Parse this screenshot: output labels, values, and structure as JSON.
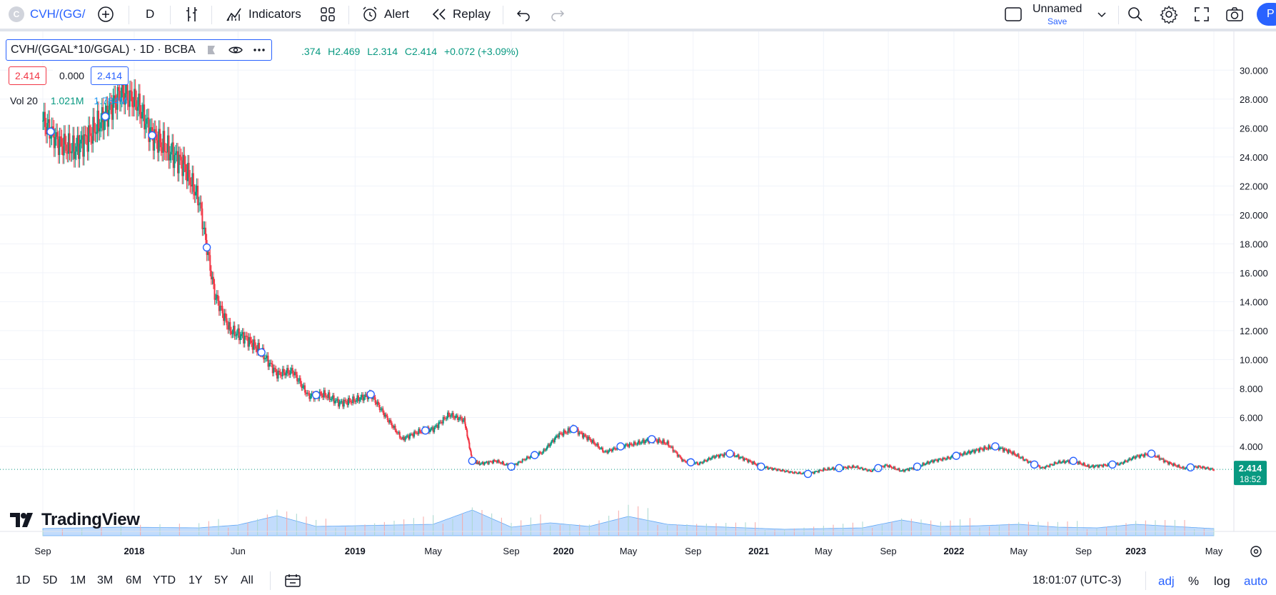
{
  "toolbar": {
    "symbol_badge": "C",
    "symbol": "CVH/(GG/",
    "interval": "D",
    "indicators_label": "Indicators",
    "alert_label": "Alert",
    "replay_label": "Replay",
    "layout_name": "Unnamed",
    "save_label": "Save",
    "publish_label": "P"
  },
  "legend": {
    "title": "CVH/(GGAL*10/GGAL) · 1D · BCBA",
    "ohlc_o": ".374",
    "ohlc_h": "H2.469",
    "ohlc_l": "L2.314",
    "ohlc_c": "C2.414",
    "ohlc_change": "+0.072 (+3.09%)",
    "bid": "2.414",
    "spread": "0.000",
    "ask": "2.414",
    "vol_label": "Vol 20",
    "vol_value": "1.021M",
    "vol_ma": "1.784M"
  },
  "watermark": {
    "brand": "TradingView"
  },
  "chart_data": {
    "type": "candlestick",
    "title": "CVH/(GGAL*10/GGAL) · 1D · BCBA",
    "ylim": [
      0,
      31
    ],
    "y_ticks": [
      "30.000",
      "28.000",
      "26.000",
      "24.000",
      "22.000",
      "20.000",
      "18.000",
      "16.000",
      "14.000",
      "12.000",
      "10.000",
      "8.000",
      "6.000",
      "4.000"
    ],
    "x_tick_labels": [
      "Sep",
      "2018",
      "Jun",
      "2019",
      "May",
      "Sep",
      "2020",
      "May",
      "Sep",
      "2021",
      "May",
      "Sep",
      "2022",
      "May",
      "Sep",
      "2023",
      "May"
    ],
    "x_tick_t": [
      0,
      0.117,
      0.25,
      0.4,
      0.5,
      0.6,
      0.667,
      0.75,
      0.833,
      0.917,
      1.0,
      1.083,
      1.167,
      1.25,
      1.333,
      1.4,
      1.5
    ],
    "series": [
      {
        "name": "Close",
        "t": [
          0,
          0.02,
          0.04,
          0.06,
          0.08,
          0.1,
          0.12,
          0.14,
          0.16,
          0.18,
          0.2,
          0.22,
          0.24,
          0.26,
          0.28,
          0.3,
          0.32,
          0.34,
          0.36,
          0.38,
          0.4,
          0.42,
          0.44,
          0.46,
          0.48,
          0.5,
          0.52,
          0.54,
          0.55,
          0.56,
          0.58,
          0.6,
          0.62,
          0.64,
          0.66,
          0.68,
          0.7,
          0.72,
          0.74,
          0.76,
          0.78,
          0.8,
          0.82,
          0.84,
          0.86,
          0.88,
          0.9,
          0.92,
          0.94,
          0.96,
          0.98,
          1.0,
          1.02,
          1.04,
          1.06,
          1.08,
          1.1,
          1.12,
          1.14,
          1.16,
          1.18,
          1.2,
          1.22,
          1.24,
          1.26,
          1.28,
          1.3,
          1.32,
          1.34,
          1.36,
          1.38,
          1.4,
          1.42,
          1.44,
          1.46,
          1.48,
          1.5
        ],
        "values": [
          26.5,
          25.0,
          24.5,
          25.5,
          26.8,
          28.5,
          27.8,
          25.5,
          24.5,
          23.5,
          21.0,
          14.5,
          12.0,
          11.5,
          10.5,
          9.0,
          9.2,
          7.5,
          7.6,
          7.0,
          7.2,
          7.6,
          6.0,
          4.5,
          5.0,
          5.2,
          6.2,
          5.8,
          3.0,
          2.8,
          3.0,
          2.6,
          3.2,
          3.6,
          4.8,
          5.2,
          4.5,
          3.6,
          4.0,
          4.2,
          4.5,
          4.2,
          3.0,
          2.8,
          3.3,
          3.5,
          3.1,
          2.6,
          2.4,
          2.2,
          2.1,
          2.4,
          2.5,
          2.6,
          2.3,
          2.7,
          2.3,
          2.6,
          3.0,
          3.2,
          3.5,
          3.8,
          4.0,
          3.6,
          3.0,
          2.5,
          2.9,
          3.0,
          2.6,
          2.7,
          2.8,
          3.3,
          3.5,
          2.9,
          2.5,
          2.6,
          2.4
        ]
      }
    ],
    "volume": {
      "name": "Vol 20",
      "t": [
        0,
        0.1,
        0.2,
        0.25,
        0.3,
        0.35,
        0.4,
        0.45,
        0.5,
        0.55,
        0.6,
        0.65,
        0.7,
        0.75,
        0.8,
        0.85,
        0.9,
        0.95,
        1.0,
        1.05,
        1.1,
        1.15,
        1.2,
        1.25,
        1.3,
        1.35,
        1.4,
        1.45,
        1.5
      ],
      "values": [
        1.0,
        1.2,
        1.1,
        1.5,
        2.8,
        1.3,
        1.4,
        1.5,
        1.6,
        3.6,
        1.2,
        1.8,
        1.3,
        2.7,
        1.6,
        1.3,
        1.1,
        0.9,
        1.0,
        1.1,
        2.2,
        1.3,
        1.4,
        1.6,
        1.2,
        1.1,
        1.6,
        1.3,
        1.0
      ]
    },
    "markers_t": [
      0.01,
      0.08,
      0.14,
      0.21,
      0.28,
      0.35,
      0.42,
      0.49,
      0.55,
      0.6,
      0.63,
      0.68,
      0.74,
      0.78,
      0.83,
      0.88,
      0.92,
      0.98,
      1.02,
      1.07,
      1.12,
      1.17,
      1.22,
      1.27,
      1.32,
      1.37,
      1.42,
      1.47
    ],
    "last_price": "2.414",
    "countdown": "18:52",
    "grid": true
  },
  "bottom": {
    "ranges": [
      "1D",
      "5D",
      "1M",
      "3M",
      "6M",
      "YTD",
      "1Y",
      "5Y",
      "All"
    ],
    "clock": "18:01:07 (UTC-3)",
    "adj": "adj",
    "pct": "%",
    "log": "log",
    "auto": "auto"
  }
}
